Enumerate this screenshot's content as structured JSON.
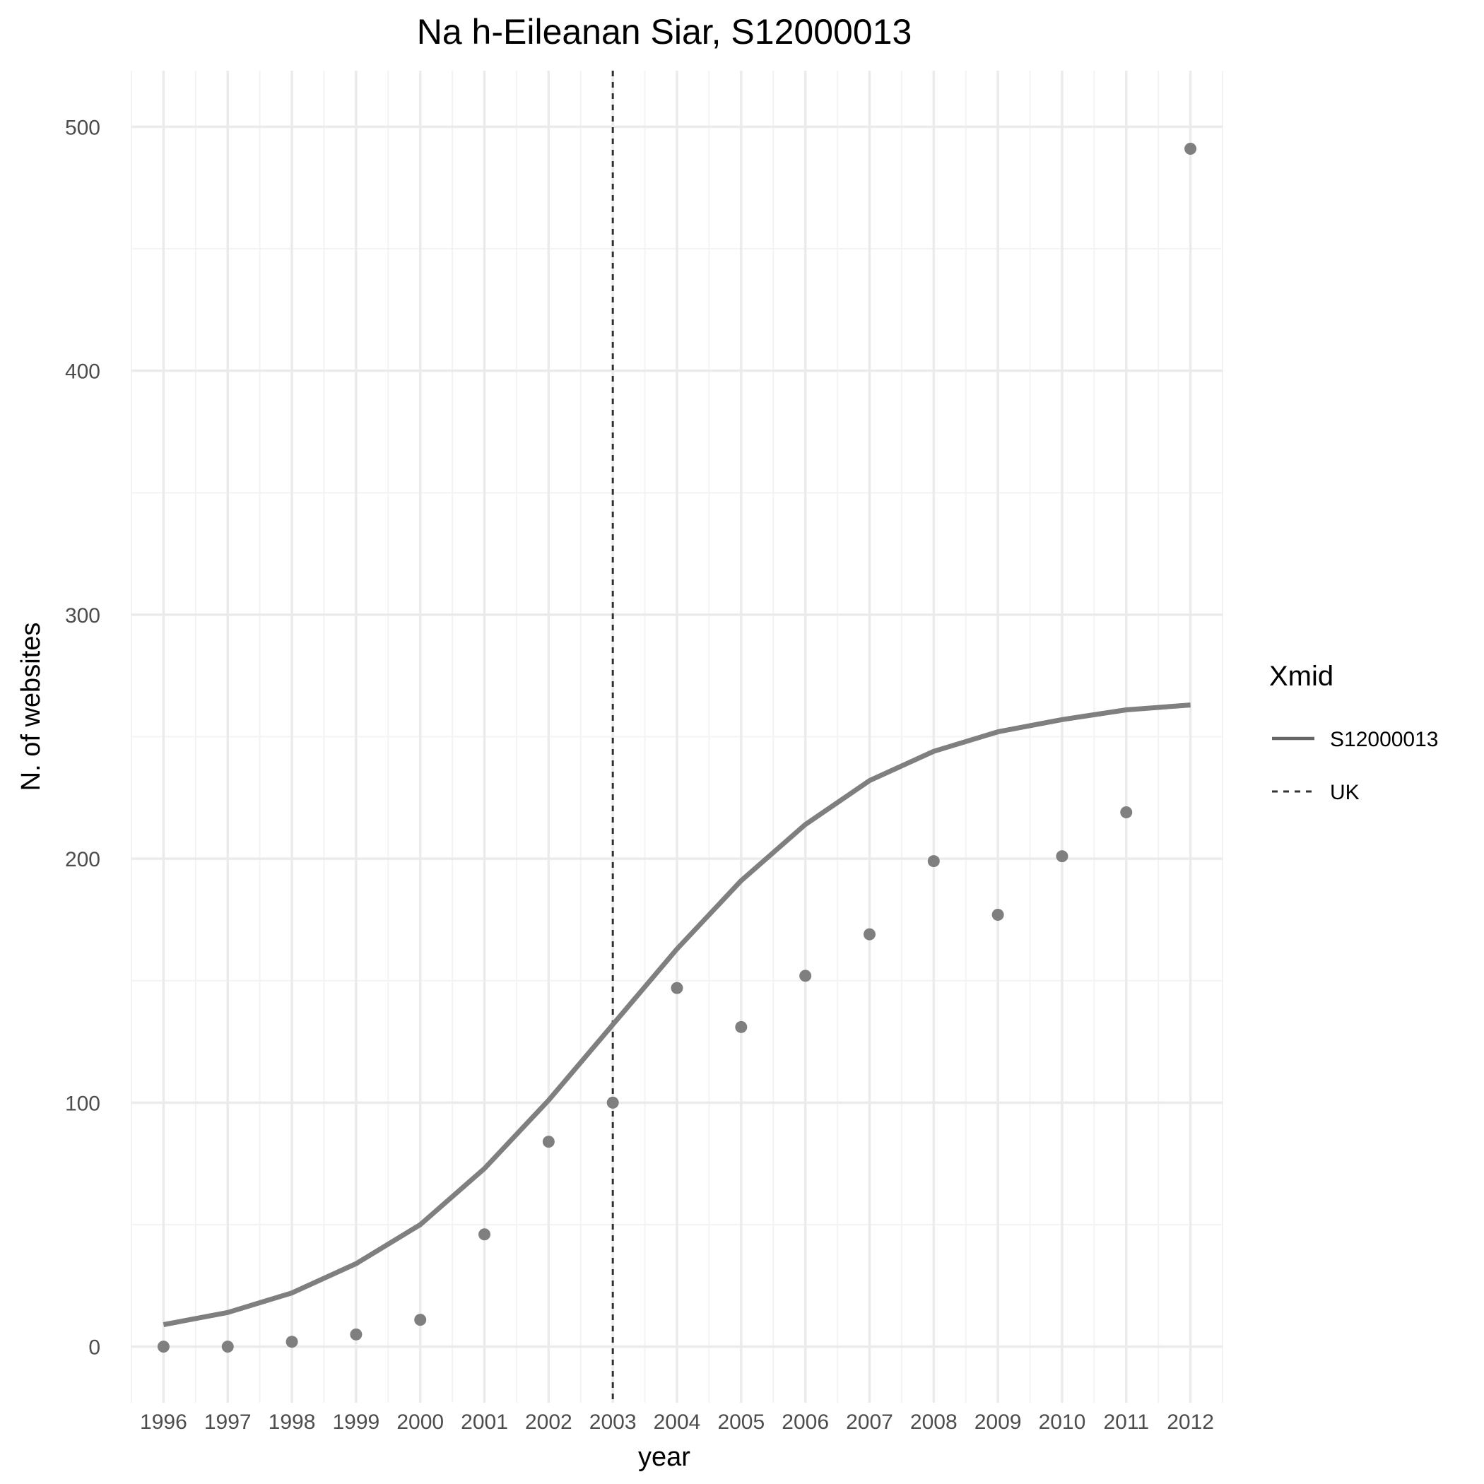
{
  "chart_data": {
    "type": "line",
    "title": "Na h-Eileanan Siar, S12000013",
    "xlabel": "year",
    "ylabel": "N. of websites",
    "x": [
      1996,
      1997,
      1998,
      1999,
      2000,
      2001,
      2002,
      2003,
      2004,
      2005,
      2006,
      2007,
      2008,
      2009,
      2010,
      2011,
      2012
    ],
    "x_tick_labels": [
      "1996",
      "1997",
      "1998",
      "1999",
      "2000",
      "2001",
      "2002",
      "2003",
      "2004",
      "2005",
      "2006",
      "2007",
      "2008",
      "2009",
      "2010",
      "2011",
      "2012"
    ],
    "xlim": [
      1995.5,
      2012.5
    ],
    "ylim": [
      -23,
      523
    ],
    "y_ticks": [
      0,
      100,
      200,
      300,
      400,
      500
    ],
    "y_tick_labels": [
      "0",
      "100",
      "200",
      "300",
      "400",
      "500"
    ],
    "grid": true,
    "points": {
      "values": [
        0,
        0,
        2,
        5,
        11,
        46,
        84,
        100,
        147,
        131,
        152,
        169,
        199,
        177,
        201,
        219,
        491
      ],
      "color": "#7f7f7f"
    },
    "series": [
      {
        "name": "S12000013",
        "linetype": "solid",
        "color": "#7f7f7f",
        "values": [
          9,
          14,
          22,
          34,
          50,
          73,
          101,
          132,
          163,
          191,
          214,
          232,
          244,
          252,
          257,
          261,
          263
        ]
      }
    ],
    "reference_lines": [
      {
        "name": "UK",
        "axis": "x",
        "value": 2003,
        "linetype": "dashed",
        "color": "#333333"
      }
    ],
    "legend": {
      "title": "Xmid",
      "position": "right",
      "entries": [
        {
          "label": "S12000013",
          "linetype": "solid",
          "color": "#666666"
        },
        {
          "label": "UK",
          "linetype": "dashed",
          "color": "#333333"
        }
      ]
    },
    "colors": {
      "grid_major": "#ebebeb",
      "grid_minor": "#f3f3f3",
      "background": "#ffffff"
    }
  }
}
